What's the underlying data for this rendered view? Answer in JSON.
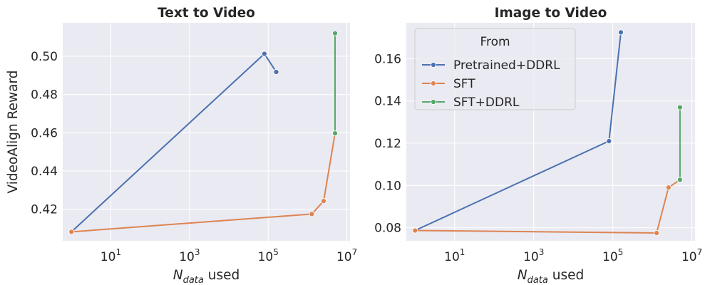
{
  "chart_data": [
    {
      "type": "line",
      "title": "Text to Video",
      "xlabel_main": "N",
      "xlabel_sub": "data",
      "xlabel_rest": " used",
      "ylabel": "VideoAlign Reward",
      "xscale": "log",
      "xlim": [
        0.6,
        12000000
      ],
      "ylim": [
        0.4035,
        0.5175
      ],
      "xticks": [
        {
          "base": "10",
          "exp": "1",
          "value": 10
        },
        {
          "base": "10",
          "exp": "3",
          "value": 1000
        },
        {
          "base": "10",
          "exp": "5",
          "value": 100000
        },
        {
          "base": "10",
          "exp": "7",
          "value": 10000000
        }
      ],
      "yticks": [
        {
          "label": "0.42",
          "value": 0.42
        },
        {
          "label": "0.44",
          "value": 0.44
        },
        {
          "label": "0.46",
          "value": 0.46
        },
        {
          "label": "0.48",
          "value": 0.48
        },
        {
          "label": "0.50",
          "value": 0.5
        }
      ],
      "grid": true,
      "series": [
        {
          "name": "Pretrained+DDRL",
          "color": "#4c72b0",
          "points": [
            {
              "x": 1,
              "y": 0.4082
            },
            {
              "x": 80000,
              "y": 0.5013
            },
            {
              "x": 160000,
              "y": 0.4918
            }
          ]
        },
        {
          "name": "SFT",
          "color": "#dd8452",
          "points": [
            {
              "x": 1,
              "y": 0.4082
            },
            {
              "x": 1280000,
              "y": 0.4175
            },
            {
              "x": 2560000,
              "y": 0.4243
            },
            {
              "x": 5000000,
              "y": 0.4597
            }
          ]
        },
        {
          "name": "SFT+DDRL",
          "color": "#55a868",
          "points": [
            {
              "x": 5000000,
              "y": 0.4597
            },
            {
              "x": 5000000,
              "y": 0.512
            }
          ]
        }
      ]
    },
    {
      "type": "line",
      "title": "Image to Video",
      "xlabel_main": "N",
      "xlabel_sub": "data",
      "xlabel_rest": " used",
      "ylabel": "",
      "xscale": "log",
      "xlim": [
        0.6,
        12000000
      ],
      "ylim": [
        0.0738,
        0.177
      ],
      "xticks": [
        {
          "base": "10",
          "exp": "1",
          "value": 10
        },
        {
          "base": "10",
          "exp": "3",
          "value": 1000
        },
        {
          "base": "10",
          "exp": "5",
          "value": 100000
        },
        {
          "base": "10",
          "exp": "7",
          "value": 10000000
        }
      ],
      "yticks": [
        {
          "label": "0.08",
          "value": 0.08
        },
        {
          "label": "0.10",
          "value": 0.1
        },
        {
          "label": "0.12",
          "value": 0.12
        },
        {
          "label": "0.14",
          "value": 0.14
        },
        {
          "label": "0.16",
          "value": 0.16
        }
      ],
      "grid": true,
      "legend": {
        "title": "From",
        "position": "top-left"
      },
      "series": [
        {
          "name": "Pretrained+DDRL",
          "color": "#4c72b0",
          "points": [
            {
              "x": 1,
              "y": 0.0787
            },
            {
              "x": 80000,
              "y": 0.121
            },
            {
              "x": 160000,
              "y": 0.1725
            }
          ]
        },
        {
          "name": "SFT",
          "color": "#dd8452",
          "points": [
            {
              "x": 1,
              "y": 0.0787
            },
            {
              "x": 1280000,
              "y": 0.0775
            },
            {
              "x": 2560000,
              "y": 0.099
            },
            {
              "x": 5000000,
              "y": 0.1027
            }
          ]
        },
        {
          "name": "SFT+DDRL",
          "color": "#55a868",
          "points": [
            {
              "x": 5000000,
              "y": 0.1027
            },
            {
              "x": 5000000,
              "y": 0.137
            }
          ]
        }
      ]
    }
  ]
}
